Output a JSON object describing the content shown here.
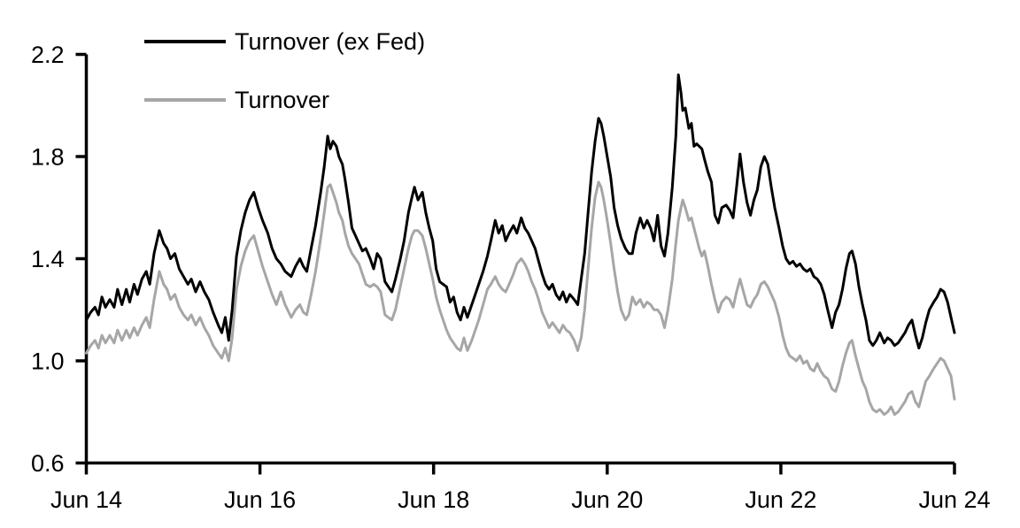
{
  "chart_data": {
    "type": "line",
    "title": "",
    "x_axis": {
      "label": "",
      "min": 0,
      "max": 10,
      "ticks": [
        {
          "t": 0,
          "label": "Jun 14"
        },
        {
          "t": 2,
          "label": "Jun 16"
        },
        {
          "t": 4,
          "label": "Jun 18"
        },
        {
          "t": 6,
          "label": "Jun 20"
        },
        {
          "t": 8,
          "label": "Jun 22"
        },
        {
          "t": 10,
          "label": "Jun 24"
        }
      ]
    },
    "y_axis": {
      "label": "",
      "min": 0.6,
      "max": 2.2,
      "ticks": [
        0.6,
        1.0,
        1.4,
        1.8,
        2.2
      ],
      "tick_labels": [
        "0.6",
        "1.0",
        "1.4",
        "1.8",
        "2.2"
      ]
    },
    "legend": [
      {
        "name": "Turnover (ex Fed)",
        "color": "#000000"
      },
      {
        "name": "Turnover",
        "color": "#a6a6a6"
      }
    ],
    "grid": false,
    "x": [
      0,
      0.05,
      0.1,
      0.14,
      0.18,
      0.22,
      0.27,
      0.32,
      0.36,
      0.41,
      0.46,
      0.5,
      0.55,
      0.59,
      0.64,
      0.69,
      0.73,
      0.78,
      0.84,
      0.89,
      0.93,
      0.97,
      1.02,
      1.07,
      1.12,
      1.17,
      1.21,
      1.26,
      1.31,
      1.36,
      1.41,
      1.46,
      1.52,
      1.56,
      1.6,
      1.64,
      1.68,
      1.73,
      1.78,
      1.83,
      1.88,
      1.93,
      1.98,
      2.03,
      2.09,
      2.14,
      2.19,
      2.24,
      2.29,
      2.36,
      2.41,
      2.46,
      2.5,
      2.54,
      2.59,
      2.64,
      2.7,
      2.74,
      2.78,
      2.81,
      2.84,
      2.88,
      2.91,
      2.95,
      2.98,
      3.02,
      3.06,
      3.1,
      3.14,
      3.18,
      3.22,
      3.27,
      3.31,
      3.35,
      3.39,
      3.44,
      3.48,
      3.52,
      3.56,
      3.61,
      3.66,
      3.71,
      3.75,
      3.78,
      3.82,
      3.87,
      3.91,
      3.95,
      3.99,
      4.03,
      4.07,
      4.11,
      4.15,
      4.19,
      4.23,
      4.27,
      4.31,
      4.35,
      4.39,
      4.44,
      4.48,
      4.52,
      4.57,
      4.62,
      4.66,
      4.71,
      4.75,
      4.79,
      4.83,
      4.87,
      4.92,
      4.96,
      5.01,
      5.05,
      5.09,
      5.13,
      5.17,
      5.21,
      5.25,
      5.29,
      5.33,
      5.37,
      5.41,
      5.45,
      5.49,
      5.53,
      5.57,
      5.62,
      5.66,
      5.7,
      5.74,
      5.78,
      5.82,
      5.86,
      5.9,
      5.93,
      5.96,
      6.0,
      6.04,
      6.08,
      6.12,
      6.16,
      6.21,
      6.25,
      6.29,
      6.33,
      6.38,
      6.42,
      6.46,
      6.5,
      6.54,
      6.58,
      6.62,
      6.66,
      6.7,
      6.75,
      6.79,
      6.82,
      6.85,
      6.87,
      6.9,
      6.94,
      6.97,
      7.0,
      7.03,
      7.06,
      7.09,
      7.12,
      7.16,
      7.2,
      7.24,
      7.28,
      7.32,
      7.37,
      7.41,
      7.45,
      7.49,
      7.53,
      7.57,
      7.61,
      7.65,
      7.69,
      7.73,
      7.77,
      7.81,
      7.85,
      7.89,
      7.93,
      7.98,
      8.02,
      8.06,
      8.1,
      8.14,
      8.18,
      8.22,
      8.26,
      8.3,
      8.34,
      8.38,
      8.42,
      8.46,
      8.5,
      8.54,
      8.59,
      8.63,
      8.67,
      8.71,
      8.75,
      8.79,
      8.82,
      8.86,
      8.9,
      8.94,
      8.98,
      9.02,
      9.06,
      9.1,
      9.14,
      9.19,
      9.23,
      9.27,
      9.31,
      9.35,
      9.39,
      9.43,
      9.47,
      9.51,
      9.55,
      9.59,
      9.63,
      9.67,
      9.71,
      9.76,
      9.8,
      9.84,
      9.88,
      9.92,
      9.96,
      10.0
    ],
    "series": [
      {
        "id": "turnover-ex-fed",
        "name": "Turnover (ex Fed)",
        "color": "#000000",
        "width": 3,
        "values": [
          1.16,
          1.19,
          1.21,
          1.18,
          1.25,
          1.21,
          1.24,
          1.21,
          1.28,
          1.22,
          1.28,
          1.23,
          1.3,
          1.26,
          1.32,
          1.35,
          1.3,
          1.42,
          1.51,
          1.46,
          1.44,
          1.4,
          1.42,
          1.36,
          1.33,
          1.3,
          1.32,
          1.27,
          1.31,
          1.27,
          1.24,
          1.19,
          1.14,
          1.11,
          1.17,
          1.08,
          1.2,
          1.41,
          1.51,
          1.58,
          1.63,
          1.66,
          1.6,
          1.55,
          1.5,
          1.44,
          1.4,
          1.38,
          1.35,
          1.33,
          1.37,
          1.4,
          1.37,
          1.35,
          1.44,
          1.53,
          1.66,
          1.76,
          1.88,
          1.83,
          1.86,
          1.84,
          1.8,
          1.77,
          1.71,
          1.62,
          1.52,
          1.49,
          1.46,
          1.43,
          1.44,
          1.4,
          1.36,
          1.42,
          1.4,
          1.31,
          1.29,
          1.27,
          1.32,
          1.39,
          1.47,
          1.58,
          1.64,
          1.68,
          1.63,
          1.66,
          1.58,
          1.52,
          1.47,
          1.36,
          1.31,
          1.3,
          1.29,
          1.23,
          1.25,
          1.19,
          1.16,
          1.21,
          1.17,
          1.22,
          1.26,
          1.3,
          1.35,
          1.41,
          1.47,
          1.55,
          1.5,
          1.53,
          1.47,
          1.5,
          1.53,
          1.5,
          1.56,
          1.52,
          1.5,
          1.47,
          1.44,
          1.39,
          1.34,
          1.3,
          1.28,
          1.3,
          1.26,
          1.24,
          1.27,
          1.23,
          1.26,
          1.24,
          1.22,
          1.32,
          1.42,
          1.58,
          1.74,
          1.86,
          1.95,
          1.93,
          1.88,
          1.8,
          1.72,
          1.6,
          1.53,
          1.48,
          1.44,
          1.42,
          1.42,
          1.5,
          1.56,
          1.52,
          1.55,
          1.52,
          1.47,
          1.57,
          1.45,
          1.41,
          1.5,
          1.68,
          1.88,
          2.12,
          2.05,
          1.98,
          1.99,
          1.91,
          1.93,
          1.84,
          1.85,
          1.84,
          1.83,
          1.79,
          1.74,
          1.7,
          1.57,
          1.54,
          1.6,
          1.61,
          1.59,
          1.56,
          1.68,
          1.81,
          1.7,
          1.62,
          1.57,
          1.63,
          1.67,
          1.76,
          1.8,
          1.77,
          1.68,
          1.6,
          1.52,
          1.45,
          1.4,
          1.38,
          1.39,
          1.37,
          1.38,
          1.36,
          1.35,
          1.36,
          1.33,
          1.32,
          1.3,
          1.26,
          1.2,
          1.13,
          1.19,
          1.22,
          1.28,
          1.36,
          1.42,
          1.43,
          1.38,
          1.29,
          1.22,
          1.16,
          1.08,
          1.06,
          1.08,
          1.11,
          1.07,
          1.09,
          1.08,
          1.06,
          1.07,
          1.09,
          1.11,
          1.14,
          1.16,
          1.1,
          1.05,
          1.09,
          1.15,
          1.2,
          1.23,
          1.25,
          1.28,
          1.27,
          1.23,
          1.17,
          1.11
        ]
      },
      {
        "id": "turnover",
        "name": "Turnover",
        "color": "#a6a6a6",
        "width": 3,
        "values": [
          1.03,
          1.06,
          1.08,
          1.05,
          1.1,
          1.07,
          1.1,
          1.07,
          1.12,
          1.08,
          1.12,
          1.09,
          1.13,
          1.1,
          1.14,
          1.17,
          1.13,
          1.24,
          1.35,
          1.3,
          1.28,
          1.24,
          1.26,
          1.21,
          1.18,
          1.16,
          1.18,
          1.14,
          1.17,
          1.13,
          1.1,
          1.06,
          1.03,
          1.01,
          1.05,
          1.0,
          1.09,
          1.28,
          1.37,
          1.43,
          1.47,
          1.49,
          1.43,
          1.37,
          1.31,
          1.26,
          1.22,
          1.27,
          1.22,
          1.17,
          1.2,
          1.22,
          1.19,
          1.18,
          1.26,
          1.35,
          1.48,
          1.58,
          1.68,
          1.69,
          1.66,
          1.62,
          1.58,
          1.55,
          1.5,
          1.45,
          1.42,
          1.4,
          1.38,
          1.34,
          1.3,
          1.29,
          1.3,
          1.29,
          1.27,
          1.18,
          1.17,
          1.16,
          1.2,
          1.28,
          1.36,
          1.44,
          1.49,
          1.51,
          1.51,
          1.49,
          1.44,
          1.38,
          1.32,
          1.25,
          1.2,
          1.16,
          1.12,
          1.09,
          1.07,
          1.05,
          1.04,
          1.09,
          1.04,
          1.08,
          1.12,
          1.16,
          1.22,
          1.28,
          1.3,
          1.33,
          1.3,
          1.28,
          1.27,
          1.3,
          1.34,
          1.38,
          1.4,
          1.38,
          1.35,
          1.31,
          1.28,
          1.24,
          1.19,
          1.16,
          1.13,
          1.15,
          1.13,
          1.11,
          1.14,
          1.12,
          1.11,
          1.08,
          1.04,
          1.09,
          1.2,
          1.36,
          1.52,
          1.64,
          1.7,
          1.68,
          1.63,
          1.55,
          1.46,
          1.36,
          1.27,
          1.2,
          1.16,
          1.18,
          1.25,
          1.22,
          1.24,
          1.21,
          1.23,
          1.22,
          1.2,
          1.2,
          1.18,
          1.13,
          1.2,
          1.32,
          1.46,
          1.55,
          1.6,
          1.63,
          1.6,
          1.55,
          1.56,
          1.52,
          1.48,
          1.44,
          1.41,
          1.43,
          1.37,
          1.3,
          1.24,
          1.19,
          1.23,
          1.25,
          1.24,
          1.21,
          1.27,
          1.32,
          1.27,
          1.22,
          1.21,
          1.24,
          1.26,
          1.3,
          1.31,
          1.29,
          1.26,
          1.23,
          1.17,
          1.1,
          1.05,
          1.02,
          1.01,
          1.0,
          1.02,
          0.99,
          1.0,
          0.97,
          0.96,
          0.99,
          0.96,
          0.94,
          0.93,
          0.89,
          0.88,
          0.92,
          0.98,
          1.03,
          1.07,
          1.08,
          1.02,
          0.97,
          0.92,
          0.89,
          0.84,
          0.81,
          0.8,
          0.81,
          0.79,
          0.8,
          0.82,
          0.79,
          0.8,
          0.82,
          0.84,
          0.87,
          0.88,
          0.84,
          0.82,
          0.87,
          0.92,
          0.94,
          0.97,
          0.99,
          1.01,
          1.0,
          0.97,
          0.94,
          0.85
        ]
      }
    ]
  }
}
